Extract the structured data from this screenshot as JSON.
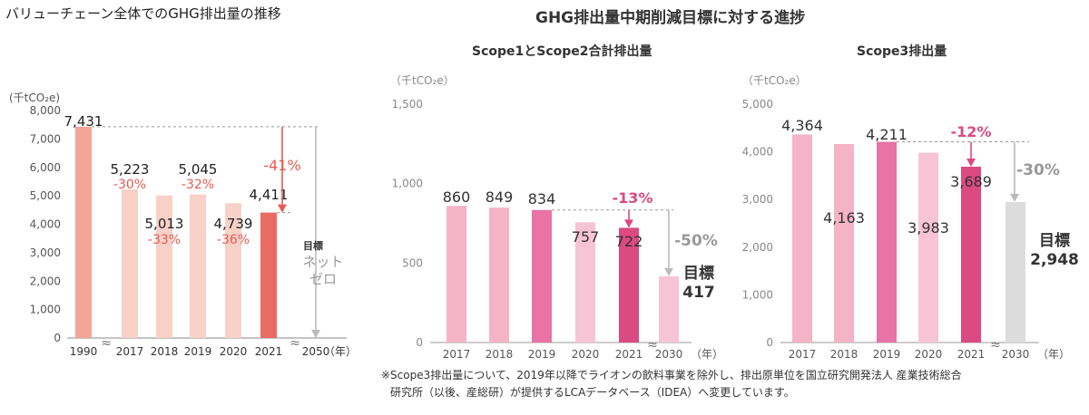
{
  "titles": {
    "left": "バリューチェーン全体でのGHG排出量の推移",
    "right": "GHG排出量中期削減目標に対する進捗",
    "middle_sub": "Scope1とScope2合計排出量",
    "right_sub": "Scope3排出量"
  },
  "footnote": {
    "line1": "※Scope3排出量について、2019年以降でライオンの飲料事業を除外し、排出原単位を国立研究開発法人 産業技術総合",
    "line2": "研究所（以後、産総研）が提供するLCAデータベース（IDEA）へ変更しています。"
  },
  "colors": {
    "left_light": "#f8d1c8",
    "left_1990": "#f3a597",
    "left_2021": "#ea6b62",
    "red_text": "#e85a4f",
    "pink_light": "#f5b3c8",
    "pink_mid": "#e873a4",
    "pink_dark": "#dc4a82",
    "pink_target": "#f7c4d6",
    "gray_target": "#dcdcdc",
    "axis_text": "#555555"
  },
  "chart_data": [
    {
      "id": "left",
      "type": "bar",
      "title": "バリューチェーン全体でのGHG排出量の推移",
      "unit": "(千tCO₂e)",
      "ylim": [
        0,
        8000
      ],
      "yticks": [
        0,
        1000,
        2000,
        3000,
        4000,
        5000,
        6000,
        7000,
        8000
      ],
      "ytick_labels": [
        "0",
        "1,000",
        "2,000",
        "3,000",
        "4,000",
        "5,000",
        "6,000",
        "7,000",
        "8,000"
      ],
      "categories": [
        "1990",
        "2017",
        "2018",
        "2019",
        "2020",
        "2021",
        "2050"
      ],
      "values": [
        7431,
        5223,
        5013,
        5045,
        4739,
        4411,
        0
      ],
      "value_labels": [
        "7,431",
        "5,223",
        "5,013",
        "5,045",
        "4,739",
        "4,411",
        ""
      ],
      "pct_labels": [
        "",
        "-30%",
        "-33%",
        "-32%",
        "-36%",
        "",
        ""
      ],
      "reduction_label": "-41%",
      "target_label": "目標",
      "target_text1": "ネット",
      "target_text2": "ゼロ",
      "year_unit": "（年）",
      "break_mark": "≈"
    },
    {
      "id": "middle",
      "type": "bar",
      "title": "Scope1とScope2合計排出量",
      "unit": "（千tCO₂e）",
      "ylim": [
        0,
        1500
      ],
      "yticks": [
        0,
        500,
        1000,
        1500
      ],
      "ytick_labels": [
        "0",
        "500",
        "1,000",
        "1,500"
      ],
      "categories": [
        "2017",
        "2018",
        "2019",
        "2020",
        "2021",
        "2030"
      ],
      "values": [
        860,
        849,
        834,
        757,
        722,
        417
      ],
      "value_labels": [
        "860",
        "849",
        "834",
        "757",
        "722",
        "417"
      ],
      "reduction_label": "-13%",
      "target_reduction_label": "-50%",
      "target_label": "目標",
      "year_unit": "（年）",
      "break_mark": "≈"
    },
    {
      "id": "right",
      "type": "bar",
      "title": "Scope3排出量",
      "unit": "（千tCO₂e）",
      "ylim": [
        0,
        5000
      ],
      "yticks": [
        0,
        1000,
        2000,
        3000,
        4000,
        5000
      ],
      "ytick_labels": [
        "0",
        "1,000",
        "2,000",
        "3,000",
        "4,000",
        "5,000"
      ],
      "categories": [
        "2017",
        "2018",
        "2019",
        "2020",
        "2021",
        "2030"
      ],
      "values": [
        4364,
        4163,
        4211,
        3983,
        3689,
        2948
      ],
      "value_labels": [
        "4,364",
        "4,163",
        "4,211",
        "3,983",
        "3,689",
        "2,948"
      ],
      "reduction_label": "-12%",
      "target_reduction_label": "-30%",
      "target_label": "目標",
      "year_unit": "（年）",
      "break_mark": "≈"
    }
  ]
}
